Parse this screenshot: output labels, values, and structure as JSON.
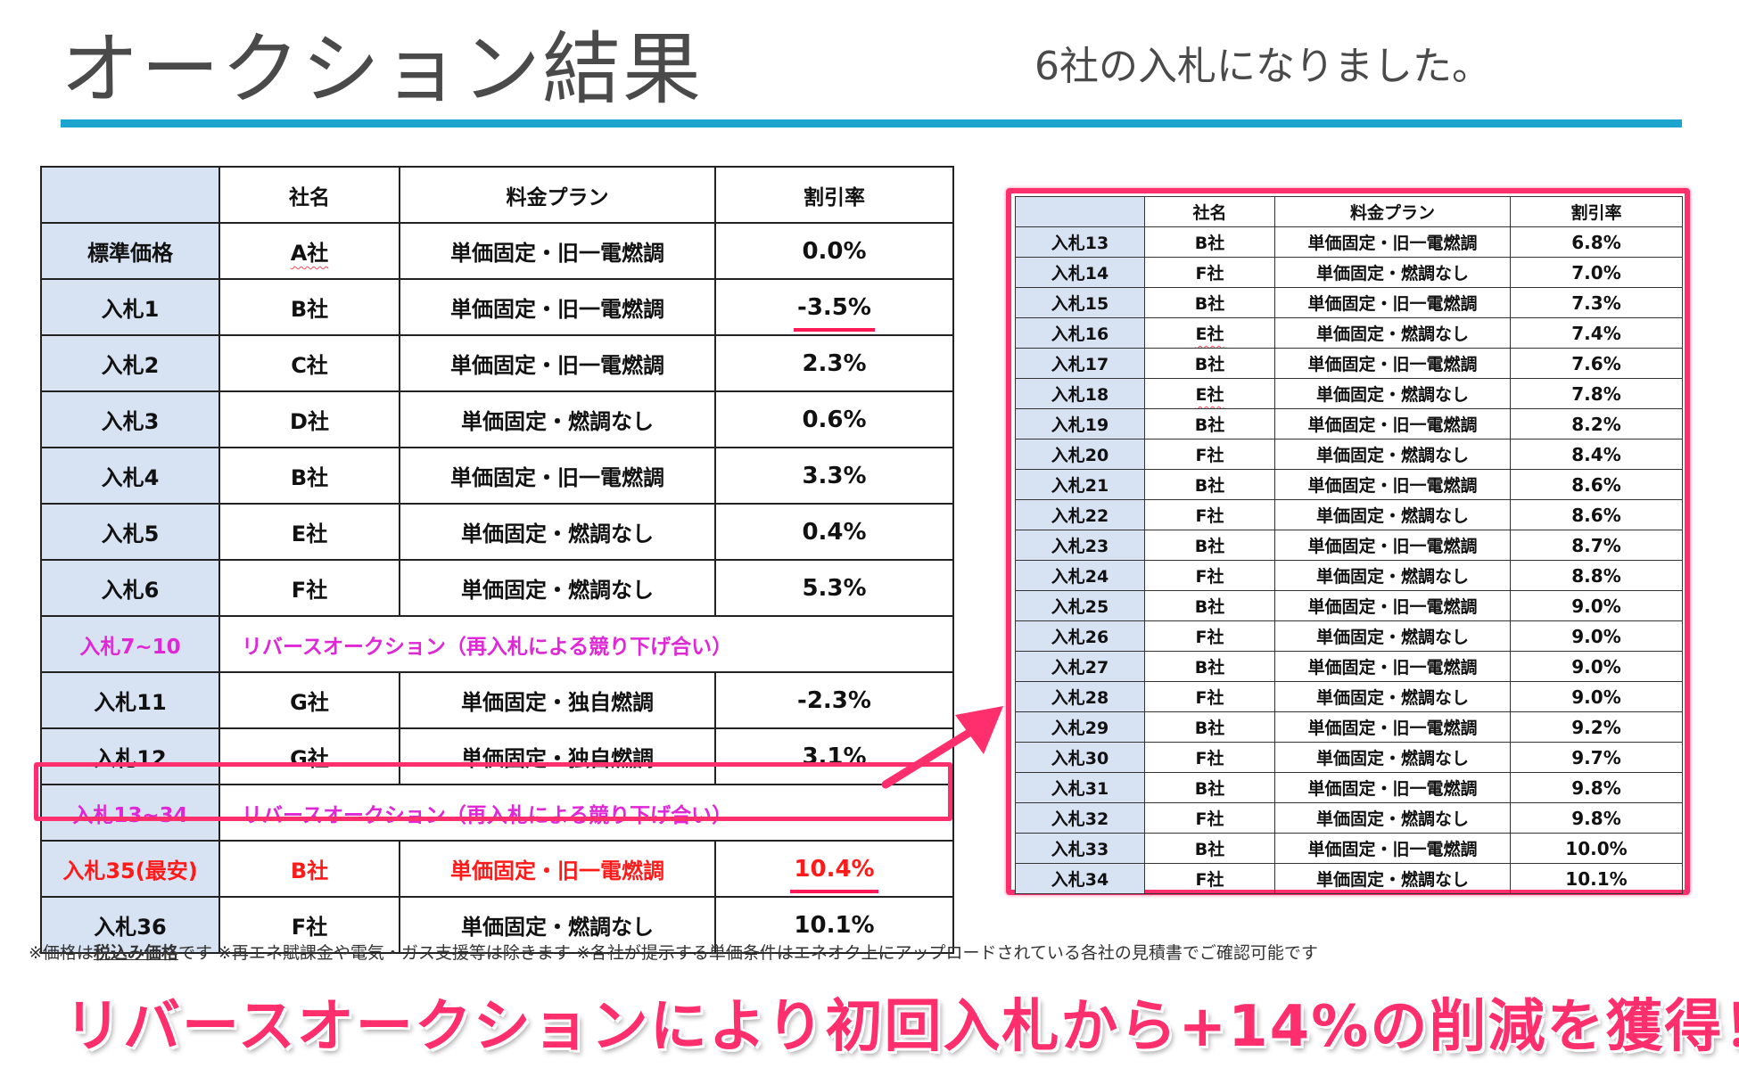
{
  "header": {
    "title": "オークション結果",
    "subtitle": "6社の入札になりました。"
  },
  "main_table": {
    "headers": [
      "",
      "社名",
      "料金プラン",
      "割引率"
    ],
    "rows": [
      {
        "label": "標準価格",
        "company": "A社",
        "plan": "単価固定・旧一電燃調",
        "rate": "0.0%"
      },
      {
        "label": "入札1",
        "company": "B社",
        "plan": "単価固定・旧一電燃調",
        "rate": "-3.5%"
      },
      {
        "label": "入札2",
        "company": "C社",
        "plan": "単価固定・旧一電燃調",
        "rate": "2.3%"
      },
      {
        "label": "入札3",
        "company": "D社",
        "plan": "単価固定・燃調なし",
        "rate": "0.6%"
      },
      {
        "label": "入札4",
        "company": "B社",
        "plan": "単価固定・旧一電燃調",
        "rate": "3.3%"
      },
      {
        "label": "入札5",
        "company": "E社",
        "plan": "単価固定・燃調なし",
        "rate": "0.4%"
      },
      {
        "label": "入札6",
        "company": "F社",
        "plan": "単価固定・燃調なし",
        "rate": "5.3%"
      },
      {
        "label": "入札7~10",
        "span_text": "リバースオークション（再入札による競り下げ合い）"
      },
      {
        "label": "入札11",
        "company": "G社",
        "plan": "単価固定・独自燃調",
        "rate": "-2.3%"
      },
      {
        "label": "入札12",
        "company": "G社",
        "plan": "単価固定・独自燃調",
        "rate": "3.1%"
      },
      {
        "label": "入札13~34",
        "span_text": "リバースオークション（再入札による競り下げ合い）"
      },
      {
        "label": "入札35(最安)",
        "company": "B社",
        "plan": "単価固定・旧一電燃調",
        "rate": "10.4%"
      },
      {
        "label": "入札36",
        "company": "F社",
        "plan": "単価固定・燃調なし",
        "rate": "10.1%"
      }
    ]
  },
  "side_table": {
    "headers": [
      "",
      "社名",
      "料金プラン",
      "割引率"
    ],
    "rows": [
      {
        "label": "入札13",
        "company": "B社",
        "plan": "単価固定・旧一電燃調",
        "rate": "6.8%"
      },
      {
        "label": "入札14",
        "company": "F社",
        "plan": "単価固定・燃調なし",
        "rate": "7.0%"
      },
      {
        "label": "入札15",
        "company": "B社",
        "plan": "単価固定・旧一電燃調",
        "rate": "7.3%"
      },
      {
        "label": "入札16",
        "company": "E社",
        "plan": "単価固定・燃調なし",
        "rate": "7.4%"
      },
      {
        "label": "入札17",
        "company": "B社",
        "plan": "単価固定・旧一電燃調",
        "rate": "7.6%"
      },
      {
        "label": "入札18",
        "company": "E社",
        "plan": "単価固定・燃調なし",
        "rate": "7.8%"
      },
      {
        "label": "入札19",
        "company": "B社",
        "plan": "単価固定・旧一電燃調",
        "rate": "8.2%"
      },
      {
        "label": "入札20",
        "company": "F社",
        "plan": "単価固定・燃調なし",
        "rate": "8.4%"
      },
      {
        "label": "入札21",
        "company": "B社",
        "plan": "単価固定・旧一電燃調",
        "rate": "8.6%"
      },
      {
        "label": "入札22",
        "company": "F社",
        "plan": "単価固定・燃調なし",
        "rate": "8.6%"
      },
      {
        "label": "入札23",
        "company": "B社",
        "plan": "単価固定・旧一電燃調",
        "rate": "8.7%"
      },
      {
        "label": "入札24",
        "company": "F社",
        "plan": "単価固定・燃調なし",
        "rate": "8.8%"
      },
      {
        "label": "入札25",
        "company": "B社",
        "plan": "単価固定・旧一電燃調",
        "rate": "9.0%"
      },
      {
        "label": "入札26",
        "company": "F社",
        "plan": "単価固定・燃調なし",
        "rate": "9.0%"
      },
      {
        "label": "入札27",
        "company": "B社",
        "plan": "単価固定・旧一電燃調",
        "rate": "9.0%"
      },
      {
        "label": "入札28",
        "company": "F社",
        "plan": "単価固定・燃調なし",
        "rate": "9.0%"
      },
      {
        "label": "入札29",
        "company": "B社",
        "plan": "単価固定・旧一電燃調",
        "rate": "9.2%"
      },
      {
        "label": "入札30",
        "company": "F社",
        "plan": "単価固定・燃調なし",
        "rate": "9.7%"
      },
      {
        "label": "入札31",
        "company": "B社",
        "plan": "単価固定・旧一電燃調",
        "rate": "9.8%"
      },
      {
        "label": "入札32",
        "company": "F社",
        "plan": "単価固定・燃調なし",
        "rate": "9.8%"
      },
      {
        "label": "入札33",
        "company": "B社",
        "plan": "単価固定・旧一電燃調",
        "rate": "10.0%"
      },
      {
        "label": "入札34",
        "company": "F社",
        "plan": "単価固定・燃調なし",
        "rate": "10.1%"
      }
    ]
  },
  "footnote": {
    "part1": "※価格は",
    "emphasis": "税込み価格",
    "part2": "です ※再エネ賦課金や電気・ガス支援等は除きます ※各社が提示する単価条件はエネオク上にアップロードされている各社の見積書でご確認可能です"
  },
  "banner": "リバースオークションにより初回入札から+14%の削減を獲得！",
  "colors": {
    "accent_pink": "#ff2e6c",
    "special_magenta": "#e027d7",
    "cheapest_red": "#ff1a1a",
    "rule_blue": "#1ea5cf",
    "label_cell_bg": "#d7e2f2"
  }
}
